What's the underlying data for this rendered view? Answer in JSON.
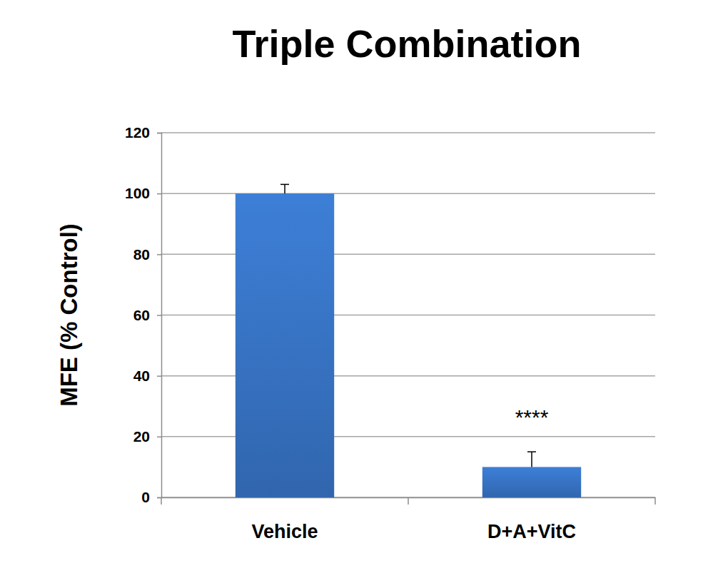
{
  "chart_data": {
    "type": "bar",
    "title": "Triple Combination",
    "y_label": "MFE (% Control)",
    "categories": [
      "Vehicle",
      "D+A+VitC"
    ],
    "values": [
      100,
      10
    ],
    "error": [
      3,
      5
    ],
    "color": "#3a78cc",
    "ylim": [
      0,
      120
    ],
    "yticks": [
      0,
      20,
      40,
      60,
      80,
      100,
      120
    ],
    "grid": true,
    "annotations": [
      {
        "text": "****",
        "category": "D+A+VitC"
      }
    ]
  }
}
